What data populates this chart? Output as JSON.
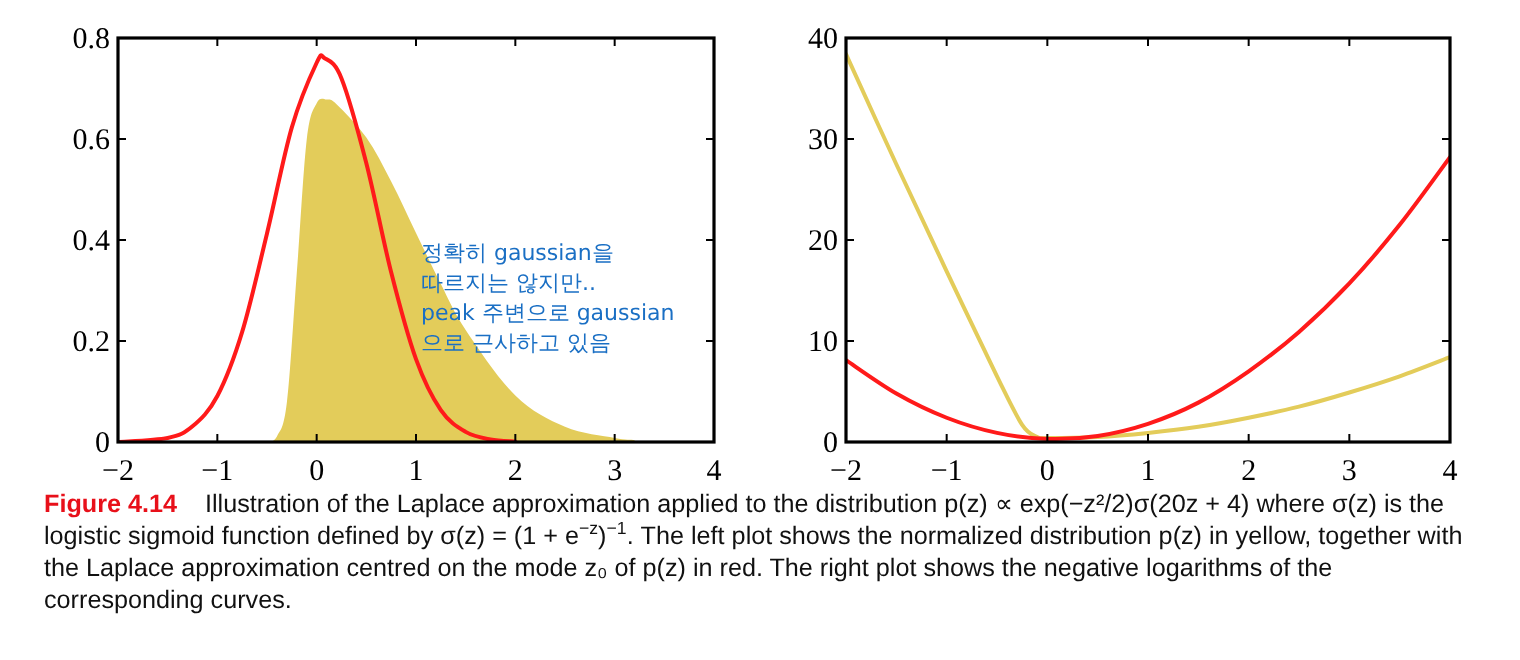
{
  "chart_data": [
    {
      "type": "line",
      "xlim": [
        -2,
        4
      ],
      "ylim": [
        0,
        0.8
      ],
      "xticks": [
        -2,
        -1,
        0,
        1,
        2,
        3,
        4
      ],
      "yticks": [
        0,
        0.2,
        0.4,
        0.6,
        0.8
      ],
      "grid": false,
      "series": [
        {
          "type": "area",
          "color": "#e3cc5a",
          "x": [
            -0.5,
            -0.4,
            -0.3,
            -0.2,
            -0.1,
            0,
            0.1,
            0.2,
            0.5,
            0.75,
            1,
            1.25,
            1.5,
            2,
            2.5,
            3,
            3.2
          ],
          "values": [
            0,
            0.011,
            0.078,
            0.335,
            0.599,
            0.671,
            0.678,
            0.669,
            0.603,
            0.516,
            0.414,
            0.313,
            0.222,
            0.092,
            0.03,
            0.008,
            0.004
          ]
        },
        {
          "color": "#ff1a1a",
          "x": [
            -2,
            -1.5,
            -1.25,
            -1,
            -0.75,
            -0.5,
            -0.25,
            0,
            0.08,
            0.25,
            0.5,
            0.75,
            1,
            1.25,
            1.5,
            1.75,
            2
          ],
          "values": [
            0,
            0.008,
            0.031,
            0.091,
            0.218,
            0.413,
            0.623,
            0.751,
            0.76,
            0.72,
            0.552,
            0.336,
            0.164,
            0.063,
            0.02,
            0.005,
            0.001
          ]
        }
      ],
      "annotations": [
        "정확히 gaussian을\n따르지는 않지만..\npeak 주변으로 gaussian\n으로 근사하고 있음",
        "Figure 4.14",
        "Illustration of the Laplace approximation applied to the distribution p(z) ∝ exp(−z²/2)σ(20z + 4) where σ(z) is the logistic sigmoid function defined by σ(z) = (1 + e$^{−z}$)$^{−1}$. The left plot shows the normalized distribution p(z) in yellow, together with the Laplace approximation centred on the mode z₀ of p(z) in red. The right plot shows the negative logarithms of the corresponding curves."
      ]
    },
    {
      "type": "line",
      "xlim": [
        -2,
        4
      ],
      "ylim": [
        0,
        40
      ],
      "xticks": [
        -2,
        -1,
        0,
        1,
        2,
        3,
        4
      ],
      "yticks": [
        0,
        10,
        20,
        30,
        40
      ],
      "grid": false,
      "series": [
        {
          "color": "#e3cc5a",
          "x": [
            -2,
            -1.5,
            -1,
            -0.5,
            -0.25,
            -0.1,
            0,
            0.5,
            1,
            1.5,
            2,
            2.5,
            3,
            3.5,
            4
          ],
          "values": [
            38.4,
            27.5,
            16.9,
            6.5,
            1.7,
            0.5,
            0.4,
            0.5,
            0.9,
            1.5,
            2.4,
            3.5,
            4.9,
            6.5,
            8.4
          ]
        },
        {
          "color": "#ff1a1a",
          "x": [
            -2,
            -1.5,
            -1,
            -0.5,
            0,
            0.5,
            1,
            1.5,
            2,
            2.5,
            3,
            3.5,
            4
          ],
          "values": [
            8.1,
            4.8,
            2.4,
            0.9,
            0.3,
            0.6,
            1.8,
            3.9,
            7,
            10.9,
            15.7,
            21.5,
            28.2
          ]
        }
      ]
    }
  ]
}
